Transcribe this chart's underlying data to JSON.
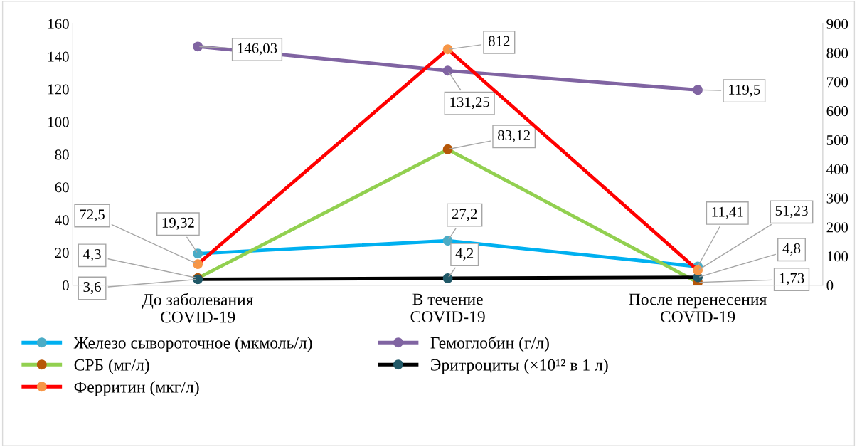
{
  "chart_data": {
    "type": "line",
    "categories": [
      "До заболевания\nCOVID-19",
      "В течение\nCOVID-19",
      "После перенесения\nCOVID-19"
    ],
    "series": [
      {
        "name": "Железо сывороточное (мкмоль/л)",
        "color": "#00b0f0",
        "colors": [
          "#4bacc6",
          "#4bacc6",
          "#4bacc6"
        ],
        "values": [
          19.32,
          27.2,
          11.41
        ],
        "value_labels": [
          "19,32",
          "27,2",
          "11,41"
        ]
      },
      {
        "name": "Гемоглобин (г/л)",
        "color": "#8064a2",
        "colors": [
          "#8064a2",
          "#8064a2",
          "#8064a2"
        ],
        "values": [
          146.03,
          131.25,
          119.5
        ],
        "value_labels": [
          "146,03",
          "131,25",
          "119,5"
        ]
      },
      {
        "name": "СРБ (мг/л)",
        "color": "#92d050",
        "colors": [
          "#b65708",
          "#b65708",
          "#b65708"
        ],
        "values": [
          4.3,
          83.12,
          1.73
        ],
        "value_labels": [
          "4,3",
          "83,12",
          "1,73"
        ]
      },
      {
        "name": "Эритроциты (×10¹² в 1 л)",
        "color": "#000000",
        "colors": [
          "#215968",
          "#215968",
          "#215968"
        ],
        "values": [
          3.6,
          4.2,
          4.8
        ],
        "value_labels": [
          "3,6",
          "4,2",
          "4,8"
        ]
      },
      {
        "name": "Ферритин (мкг/л)",
        "color": "#ff0000",
        "colors": [
          "#f79646",
          "#f79646",
          "#f79646"
        ],
        "values": [
          72.5,
          812,
          51.23
        ],
        "value_labels": [
          "72,5",
          "812",
          "51,23"
        ],
        "axis": "y2"
      }
    ],
    "ylim": [
      0,
      160
    ],
    "yticks": [
      0,
      20,
      40,
      60,
      80,
      100,
      120,
      140,
      160
    ],
    "y2lim": [
      0,
      900
    ],
    "y2ticks": [
      0,
      100,
      200,
      300,
      400,
      500,
      600,
      700,
      800,
      900
    ],
    "marker": "circle",
    "line_style": "solid",
    "grid": false,
    "legend": "bottom"
  }
}
